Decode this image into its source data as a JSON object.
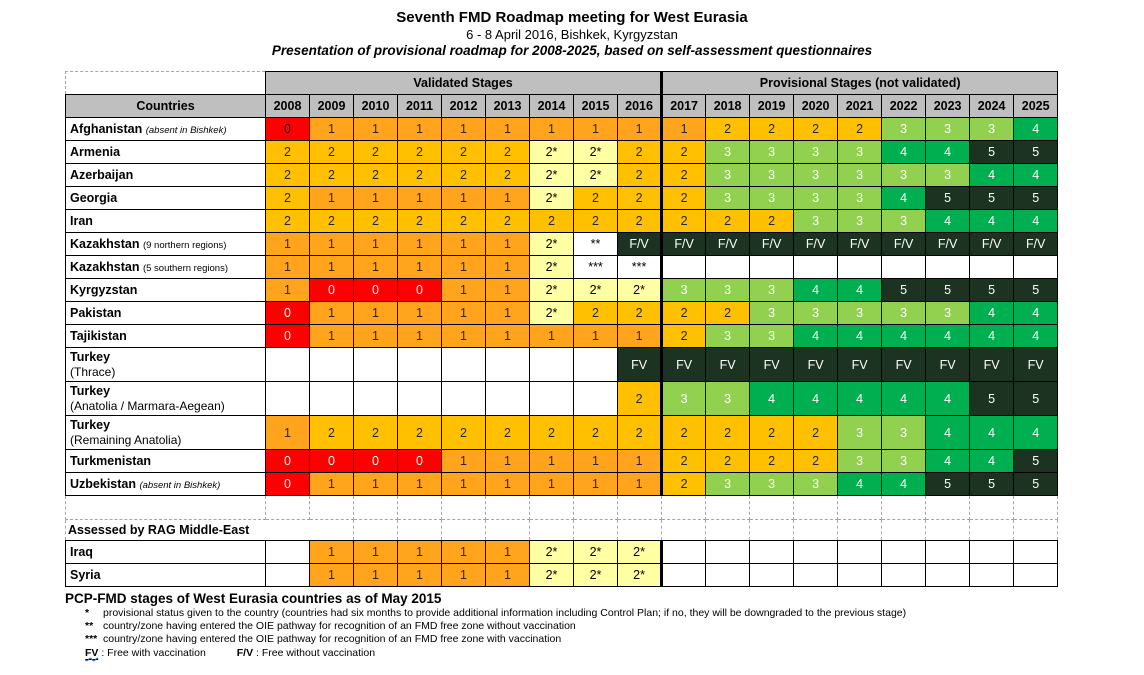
{
  "header": {
    "title": "Seventh FMD Roadmap meeting for West Eurasia",
    "subtitle": "6 - 8 April 2016, Bishkek, Kyrgyzstan",
    "tagline": "Presentation of provisional roadmap for 2008-2025, based on self-assessment questionnaires"
  },
  "table": {
    "countries_header": "Countries",
    "group_headers": {
      "validated": "Validated Stages",
      "provisional": "Provisional Stages (not validated)"
    },
    "years": [
      "2008",
      "2009",
      "2010",
      "2011",
      "2012",
      "2013",
      "2014",
      "2015",
      "2016",
      "2017",
      "2018",
      "2019",
      "2020",
      "2021",
      "2022",
      "2023",
      "2024",
      "2025"
    ],
    "rows": [
      {
        "name": "Afghanistan",
        "note": "(absent in Bishkek)",
        "note_italic": true,
        "zero_black": true,
        "cells": [
          "0",
          "1",
          "1",
          "1",
          "1",
          "1",
          "1",
          "1",
          "1",
          "1",
          "2",
          "2",
          "2",
          "2",
          "3",
          "3",
          "3",
          "4"
        ]
      },
      {
        "name": "Armenia",
        "cells": [
          "2",
          "2",
          "2",
          "2",
          "2",
          "2",
          "2*",
          "2*",
          "2",
          "2",
          "3",
          "3",
          "3",
          "3",
          "4",
          "4",
          "5",
          "5"
        ]
      },
      {
        "name": "Azerbaijan",
        "cells": [
          "2",
          "2",
          "2",
          "2",
          "2",
          "2",
          "2*",
          "2*",
          "2",
          "2",
          "3",
          "3",
          "3",
          "3",
          "3",
          "3",
          "4",
          "4"
        ]
      },
      {
        "name": "Georgia",
        "cells": [
          "2",
          "1",
          "1",
          "1",
          "1",
          "1",
          "2*",
          "2",
          "2",
          "2",
          "3",
          "3",
          "3",
          "3",
          "4",
          "5",
          "5",
          "5"
        ]
      },
      {
        "name": "Iran",
        "cells": [
          "2",
          "2",
          "2",
          "2",
          "2",
          "2",
          "2",
          "2",
          "2",
          "2",
          "2",
          "2",
          "3",
          "3",
          "3",
          "4",
          "4",
          "4"
        ]
      },
      {
        "name": "Kazakhstan",
        "note": "(9 northern regions)",
        "note_italic": false,
        "cells": [
          "1",
          "1",
          "1",
          "1",
          "1",
          "1",
          "2*",
          "**",
          "F/V",
          "F/V",
          "F/V",
          "F/V",
          "F/V",
          "F/V",
          "F/V",
          "F/V",
          "F/V",
          "F/V"
        ]
      },
      {
        "name": "Kazakhstan",
        "note": "(5 southern regions)",
        "note_italic": false,
        "cells": [
          "1",
          "1",
          "1",
          "1",
          "1",
          "1",
          "2*",
          "***",
          "***",
          "",
          "",
          "",
          "",
          "",
          "",
          "",
          "",
          ""
        ]
      },
      {
        "name": "Kyrgyzstan",
        "cells": [
          "1",
          "0",
          "0",
          "0",
          "1",
          "1",
          "2*",
          "2*",
          "2*",
          "3",
          "3",
          "3",
          "4",
          "4",
          "5",
          "5",
          "5",
          "5"
        ]
      },
      {
        "name": "Pakistan",
        "cells": [
          "0",
          "1",
          "1",
          "1",
          "1",
          "1",
          "2*",
          "2",
          "2",
          "2",
          "2",
          "3",
          "3",
          "3",
          "3",
          "3",
          "4",
          "4"
        ]
      },
      {
        "name": "Tajikistan",
        "cells": [
          "0",
          "1",
          "1",
          "1",
          "1",
          "1",
          "1",
          "1",
          "1",
          "2",
          "3",
          "3",
          "4",
          "4",
          "4",
          "4",
          "4",
          "4"
        ]
      },
      {
        "name": "Turkey",
        "sub": "(Thrace)",
        "cells": [
          "",
          "",
          "",
          "",
          "",
          "",
          "",
          "",
          "FV",
          "FV",
          "FV",
          "FV",
          "FV",
          "FV",
          "FV",
          "FV",
          "FV",
          "FV"
        ]
      },
      {
        "name": "Turkey",
        "sub": "(Anatolia / Marmara-Aegean)",
        "cells": [
          "",
          "",
          "",
          "",
          "",
          "",
          "",
          "",
          "2",
          "3",
          "3",
          "4",
          "4",
          "4",
          "4",
          "4",
          "5",
          "5"
        ]
      },
      {
        "name": "Turkey",
        "sub": "(Remaining Anatolia)",
        "cells": [
          "1",
          "2",
          "2",
          "2",
          "2",
          "2",
          "2",
          "2",
          "2",
          "2",
          "2",
          "2",
          "2",
          "3",
          "3",
          "4",
          "4",
          "4"
        ]
      },
      {
        "name": "Turkmenistan",
        "cells": [
          "0",
          "0",
          "0",
          "0",
          "1",
          "1",
          "1",
          "1",
          "1",
          "2",
          "2",
          "2",
          "2",
          "3",
          "3",
          "4",
          "4",
          "5"
        ]
      },
      {
        "name": "Uzbekistan",
        "note": "(absent in Bishkek)",
        "note_italic": true,
        "cells": [
          "0",
          "1",
          "1",
          "1",
          "1",
          "1",
          "1",
          "1",
          "1",
          "2",
          "3",
          "3",
          "3",
          "4",
          "4",
          "5",
          "5",
          "5"
        ]
      }
    ],
    "section2_label": "Assessed by RAG Middle-East",
    "rows2": [
      {
        "name": "Iraq",
        "cells": [
          "",
          "1",
          "1",
          "1",
          "1",
          "1",
          "2*",
          "2*",
          "2*",
          "",
          "",
          "",
          "",
          "",
          "",
          "",
          "",
          ""
        ]
      },
      {
        "name": "Syria",
        "cells": [
          "",
          "1",
          "1",
          "1",
          "1",
          "1",
          "2*",
          "2*",
          "2*",
          "",
          "",
          "",
          "",
          "",
          "",
          "",
          "",
          ""
        ]
      }
    ]
  },
  "colors": {
    "stage0": "#FF0000",
    "stage1": "#FFA41C",
    "stage2": "#FFC000",
    "stage2_provisional": "#FFFFA3",
    "stage3": "#92D050",
    "stage4": "#00B050",
    "stage5": "#1D3321",
    "free_status": "#1D3321",
    "header_gray": "#BFBFBF"
  },
  "footer": {
    "heading": "PCP-FMD stages of West Eurasia countries as of May 2015",
    "notes": [
      {
        "sym": "*",
        "text": "provisional status given to the country (countries had six months to provide additional information including Control Plan; if no, they will be downgraded to the previous stage)"
      },
      {
        "sym": "**",
        "text": "country/zone having entered the OIE pathway for recognition of an FMD free zone without vaccination"
      },
      {
        "sym": "***",
        "text": "country/zone having entered the OIE pathway for recognition of an FMD free zone with vaccination"
      }
    ],
    "fv_label": "FV",
    "fv_text": ": Free with vaccination",
    "fvv_label": "F/V",
    "fvv_text": ": Free without vaccination"
  }
}
